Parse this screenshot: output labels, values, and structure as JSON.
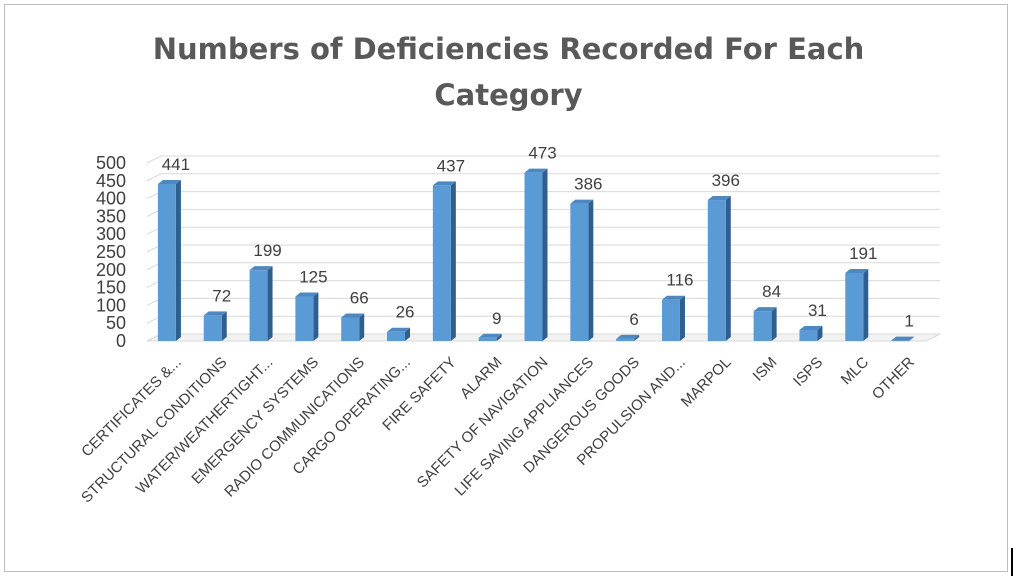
{
  "chart_data": {
    "type": "bar",
    "style": "3d-column",
    "title": "Numbers of Deficiencies Recorded For Each Category",
    "title_lines": [
      "Numbers of Deficiencies Recorded For Each",
      "Category"
    ],
    "xlabel": "",
    "ylabel": "",
    "ylim": [
      0,
      500
    ],
    "yticks": [
      0,
      50,
      100,
      150,
      200,
      250,
      300,
      350,
      400,
      450,
      500
    ],
    "grid": true,
    "legend": "none",
    "bar_color": "#5b9bd5",
    "bar_side_color": "#2e5f8f",
    "bar_top_color": "#4f88c0",
    "categories": [
      "CERTIFICATES &...",
      "STRUCTURAL CONDITIONS",
      "WATER/WEATHERTIGHT...",
      "EMERGENCY SYSTEMS",
      "RADIO COMMUNICATIONS",
      "CARGO OPERATING...",
      "FIRE SAFETY",
      "ALARM",
      "SAFETY OF NAVIGATION",
      "LIFE SAVING APPLIANCES",
      "DANGEROUS GOODS",
      "PROPULSION AND...",
      "MARPOL",
      "ISM",
      "ISPS",
      "MLC",
      "OTHER"
    ],
    "values": [
      441,
      72,
      199,
      125,
      66,
      26,
      437,
      9,
      473,
      386,
      6,
      116,
      396,
      84,
      31,
      191,
      1
    ]
  }
}
